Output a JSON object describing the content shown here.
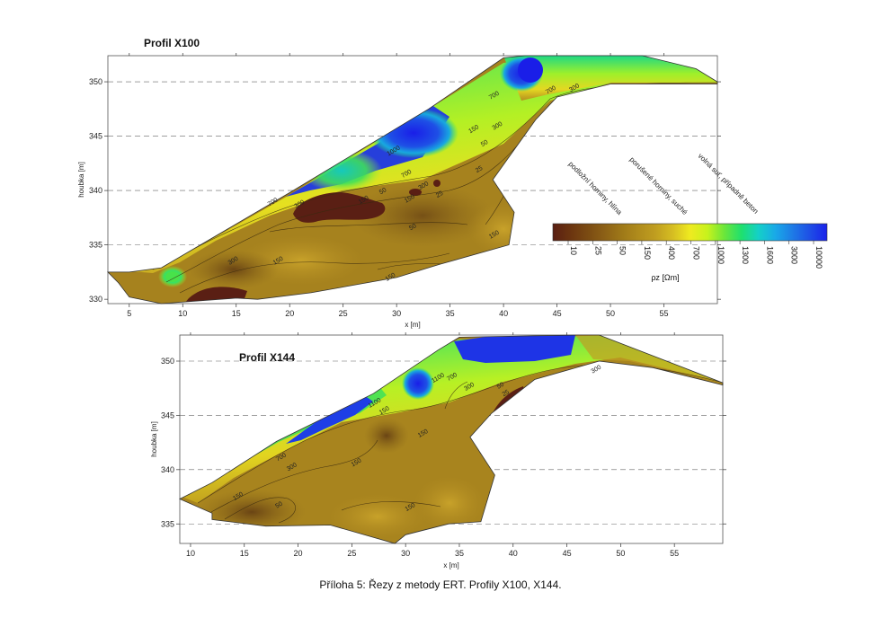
{
  "caption": "Příloha 5: Řezy z metody ERT. Profily X100, X144.",
  "chart_data": [
    {
      "type": "heatmap",
      "title": "Profil X100",
      "xlabel": "x [m]",
      "ylabel": "houbka [m]",
      "xlim": [
        3,
        60
      ],
      "ylim": [
        329.6,
        352.4
      ],
      "xticks": [
        5,
        10,
        15,
        20,
        25,
        30,
        35,
        40,
        45,
        50,
        55
      ],
      "yticks": [
        330,
        335,
        340,
        345,
        350
      ],
      "dashed_levels": [
        335,
        340,
        345,
        350
      ],
      "contour_labels": [
        {
          "text": "700",
          "x": 18.5,
          "y": 338.8
        },
        {
          "text": "300",
          "x": 14.8,
          "y": 333.4
        },
        {
          "text": "150",
          "x": 19,
          "y": 333.4
        },
        {
          "text": "150",
          "x": 27,
          "y": 339
        },
        {
          "text": "150",
          "x": 29.5,
          "y": 331.9
        },
        {
          "text": "300",
          "x": 21,
          "y": 338.6
        },
        {
          "text": "700",
          "x": 31,
          "y": 341.4
        },
        {
          "text": "300",
          "x": 32.6,
          "y": 340.3
        },
        {
          "text": "150",
          "x": 31.3,
          "y": 339.1
        },
        {
          "text": "50",
          "x": 28.8,
          "y": 339.8
        },
        {
          "text": "25",
          "x": 34.1,
          "y": 339.5
        },
        {
          "text": "50",
          "x": 31.6,
          "y": 336.5
        },
        {
          "text": "50",
          "x": 38.3,
          "y": 344.2
        },
        {
          "text": "25",
          "x": 37.8,
          "y": 341.8
        },
        {
          "text": "150",
          "x": 39.2,
          "y": 335.8
        },
        {
          "text": "150",
          "x": 37.3,
          "y": 345.5
        },
        {
          "text": "300",
          "x": 39.5,
          "y": 345.8
        },
        {
          "text": "700",
          "x": 39.2,
          "y": 348.6
        },
        {
          "text": "1000",
          "x": 29.8,
          "y": 343.5
        },
        {
          "text": "700",
          "x": 44.5,
          "y": 349.1
        },
        {
          "text": "300",
          "x": 46.7,
          "y": 349.3
        }
      ]
    },
    {
      "type": "heatmap",
      "title": "Profil X144",
      "xlabel": "x [m]",
      "ylabel": "houbka [m]",
      "xlim": [
        9,
        59.5
      ],
      "ylim": [
        333.2,
        352.4
      ],
      "xticks": [
        10,
        15,
        20,
        25,
        30,
        35,
        40,
        45,
        50,
        55
      ],
      "yticks": [
        335,
        340,
        345,
        350
      ],
      "dashed_levels": [
        335,
        340,
        345,
        350
      ],
      "contour_labels": [
        {
          "text": "700",
          "x": 18.5,
          "y": 341
        },
        {
          "text": "300",
          "x": 19.5,
          "y": 340.1
        },
        {
          "text": "150",
          "x": 14.5,
          "y": 337.4
        },
        {
          "text": "50",
          "x": 18.3,
          "y": 336.6
        },
        {
          "text": "150",
          "x": 25.5,
          "y": 340.5
        },
        {
          "text": "150",
          "x": 31.7,
          "y": 343.2
        },
        {
          "text": "150",
          "x": 30.5,
          "y": 336.4
        },
        {
          "text": "1100",
          "x": 27.2,
          "y": 346
        },
        {
          "text": "150",
          "x": 28.1,
          "y": 345.3
        },
        {
          "text": "1100",
          "x": 33.1,
          "y": 348.3
        },
        {
          "text": "700",
          "x": 34.4,
          "y": 348.4
        },
        {
          "text": "300",
          "x": 36,
          "y": 347.5
        },
        {
          "text": "50",
          "x": 38.9,
          "y": 347.6
        },
        {
          "text": "25",
          "x": 39.4,
          "y": 346.9
        },
        {
          "text": "300",
          "x": 47.8,
          "y": 349.1
        }
      ]
    }
  ],
  "legend": {
    "unit": "ρz [Ωm]",
    "ticks": [
      "10",
      "25",
      "50",
      "150",
      "400",
      "700",
      "1000",
      "1300",
      "1600",
      "3000",
      "10000"
    ],
    "colors": [
      "#5a1f12",
      "#6b3410",
      "#7a4a12",
      "#8c6016",
      "#9e7818",
      "#b08c1c",
      "#c09e20",
      "#d6be22",
      "#efea20",
      "#c8f21c",
      "#6ce63a",
      "#1ee06e",
      "#14d0c8",
      "#19a8e8",
      "#1e7ae6",
      "#1e4ee6",
      "#1a22ea"
    ],
    "zone_labels": [
      "podložní horniny, hlína",
      "porušené horniny, suché",
      "volná suť, případně beton"
    ]
  }
}
